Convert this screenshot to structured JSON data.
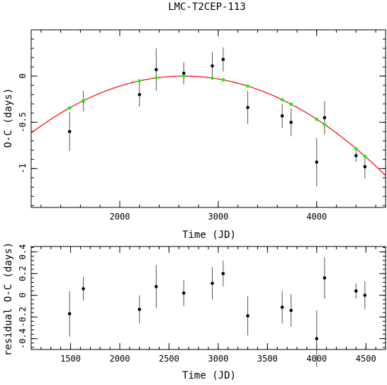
{
  "chart_data": [
    {
      "type": "scatter",
      "title": "LMC-T2CEP-113",
      "xlabel": "Time (JD)",
      "ylabel": "O-C (days)",
      "xlim": [
        1100,
        4700
      ],
      "ylim": [
        -1.42,
        0.5
      ],
      "xticks": [
        2000,
        3000,
        4000
      ],
      "xtick_labels": [
        "2000",
        "3000",
        "4000"
      ],
      "yticks": [
        0,
        -0.5,
        -1
      ],
      "ytick_labels": [
        "0",
        "-0.5",
        "-1"
      ],
      "fit": {
        "name": "parabola",
        "color": "#ff0000",
        "vertex_x": 2650,
        "vertex_y": 0.0,
        "curvature": -2.56e-07
      },
      "series": [
        {
          "kind": "observed",
          "color": "#000000",
          "points": [
            {
              "x": 1490,
              "y": -0.6,
              "err": 0.21
            },
            {
              "x": 1630,
              "y": -0.27,
              "err": 0.11
            },
            {
              "x": 2200,
              "y": -0.2,
              "err": 0.13
            },
            {
              "x": 2370,
              "y": 0.07,
              "err": 0.23
            },
            {
              "x": 2650,
              "y": 0.03,
              "err": 0.12
            },
            {
              "x": 2940,
              "y": 0.11,
              "err": 0.15
            },
            {
              "x": 3050,
              "y": 0.18,
              "err": 0.13
            },
            {
              "x": 3300,
              "y": -0.34,
              "err": 0.18
            },
            {
              "x": 3650,
              "y": -0.43,
              "err": 0.13
            },
            {
              "x": 3740,
              "y": -0.5,
              "err": 0.15
            },
            {
              "x": 4000,
              "y": -0.93,
              "err": 0.26
            },
            {
              "x": 4080,
              "y": -0.45,
              "err": 0.18
            },
            {
              "x": 4400,
              "y": -0.86,
              "err": 0.07
            },
            {
              "x": 4490,
              "y": -0.98,
              "err": 0.13
            }
          ]
        },
        {
          "kind": "model",
          "color": "#00ff00",
          "x": [
            1490,
            1630,
            2200,
            2370,
            2650,
            2940,
            3050,
            3300,
            3650,
            3740,
            4000,
            4080,
            4400,
            4490
          ]
        }
      ]
    },
    {
      "type": "scatter",
      "xlabel": "Time (JD)",
      "ylabel": "residual O-C (days)",
      "xlim": [
        1100,
        4700
      ],
      "ylim": [
        -0.5,
        0.45
      ],
      "xticks": [
        1500,
        2000,
        2500,
        3000,
        3500,
        4000,
        4500
      ],
      "xtick_labels": [
        "1500",
        "2000",
        "2500",
        "3000",
        "3500",
        "4000",
        "4500"
      ],
      "yticks": [
        0.4,
        0.2,
        0,
        -0.2,
        -0.4
      ],
      "ytick_labels": [
        "0.4",
        "0.2",
        "0",
        "-0.2",
        "-0.4"
      ],
      "series": [
        {
          "kind": "residual",
          "color": "#000000",
          "points": [
            {
              "x": 1490,
              "y": -0.17,
              "err": 0.21
            },
            {
              "x": 1630,
              "y": 0.06,
              "err": 0.11
            },
            {
              "x": 2200,
              "y": -0.13,
              "err": 0.13
            },
            {
              "x": 2370,
              "y": 0.08,
              "err": 0.2
            },
            {
              "x": 2650,
              "y": 0.02,
              "err": 0.12
            },
            {
              "x": 2940,
              "y": 0.11,
              "err": 0.15
            },
            {
              "x": 3050,
              "y": 0.2,
              "err": 0.12
            },
            {
              "x": 3300,
              "y": -0.19,
              "err": 0.18
            },
            {
              "x": 3650,
              "y": -0.11,
              "err": 0.15
            },
            {
              "x": 3740,
              "y": -0.14,
              "err": 0.15
            },
            {
              "x": 4000,
              "y": -0.4,
              "err": 0.26
            },
            {
              "x": 4080,
              "y": 0.16,
              "err": 0.19
            },
            {
              "x": 4400,
              "y": 0.04,
              "err": 0.07
            },
            {
              "x": 4490,
              "y": 0.0,
              "err": 0.13
            }
          ]
        }
      ]
    }
  ]
}
